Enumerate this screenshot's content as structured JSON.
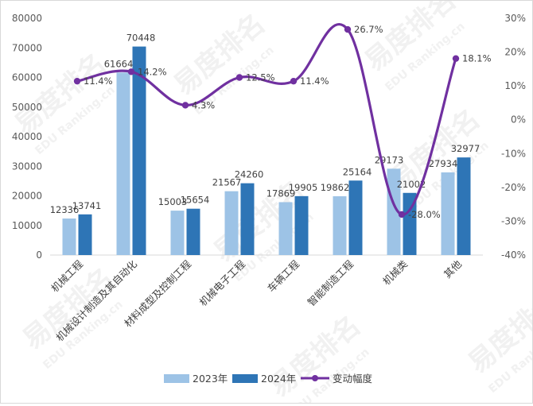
{
  "chart_data": {
    "type": "bar",
    "categories": [
      "机械工程",
      "机械设计制造及其自动化",
      "材料成型及控制工程",
      "机械电子工程",
      "车辆工程",
      "智能制造工程",
      "机械类",
      "其他"
    ],
    "series": [
      {
        "name": "2023年",
        "type": "bar",
        "axis": "left",
        "color": "#9dc3e6",
        "values": [
          12336,
          61664,
          15003,
          21567,
          17869,
          19862,
          29173,
          27934
        ]
      },
      {
        "name": "2024年",
        "type": "bar",
        "axis": "left",
        "color": "#2e75b6",
        "values": [
          13741,
          70448,
          15654,
          24260,
          19905,
          25164,
          21002,
          32977
        ]
      },
      {
        "name": "变动幅度",
        "type": "line",
        "axis": "right",
        "color": "#7030a0",
        "values": [
          11.4,
          14.2,
          4.3,
          12.5,
          11.4,
          26.7,
          -28.0,
          18.1
        ]
      }
    ],
    "point_labels": [
      "11.4%",
      "14.2%",
      "4.3%",
      "12.5%",
      "11.4%",
      "26.7%",
      "-28.0%",
      "18.1%"
    ],
    "y_left": {
      "min": 0,
      "max": 80000,
      "ticks": [
        "0",
        "10000",
        "20000",
        "30000",
        "40000",
        "50000",
        "60000",
        "70000",
        "80000"
      ]
    },
    "y_right": {
      "min": -40,
      "max": 30,
      "ticks": [
        "-40%",
        "-30%",
        "-20%",
        "-10%",
        "0%",
        "10%",
        "20%",
        "30%"
      ]
    },
    "grid": false,
    "legend_position": "bottom",
    "title": "",
    "xlabel": "",
    "ylabel": ""
  },
  "watermark": {
    "text": "易度排名",
    "sub": "EDU Ranking.cn"
  }
}
